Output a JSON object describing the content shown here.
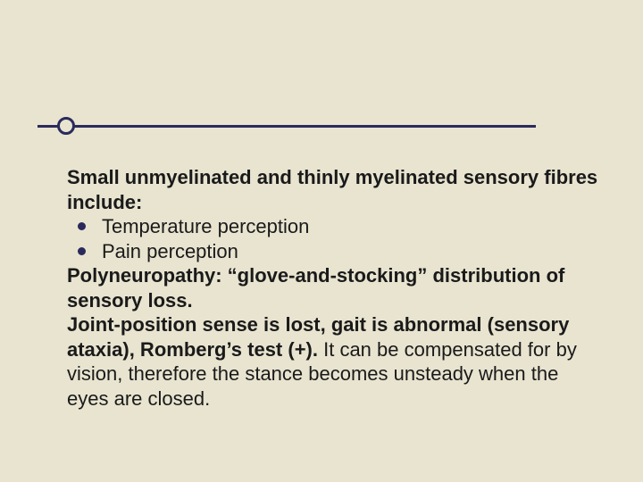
{
  "background_color": "#e8e4d0",
  "divider": {
    "line_color": "#2a2a5c",
    "line_width": 558,
    "line_height": 3,
    "bump_diameter": 20,
    "bump_border_width": 3
  },
  "text_color": "#1a1a1a",
  "font_size_pt": 17,
  "content": {
    "heading1": "Small unmyelinated and thinly myelinated sensory fibres include:",
    "bullets": [
      "Temperature perception",
      "Pain perception"
    ],
    "para1_bold": "Polyneuropathy:   “glove-and-stocking” distribution of sensory loss.",
    "para2_bold": "Joint-position sense is lost, gait is abnormal (sensory ataxia), Romberg’s test (+). ",
    "para2_rest": "It can be compensated for by vision, therefore the stance becomes unsteady when the eyes are closed."
  }
}
